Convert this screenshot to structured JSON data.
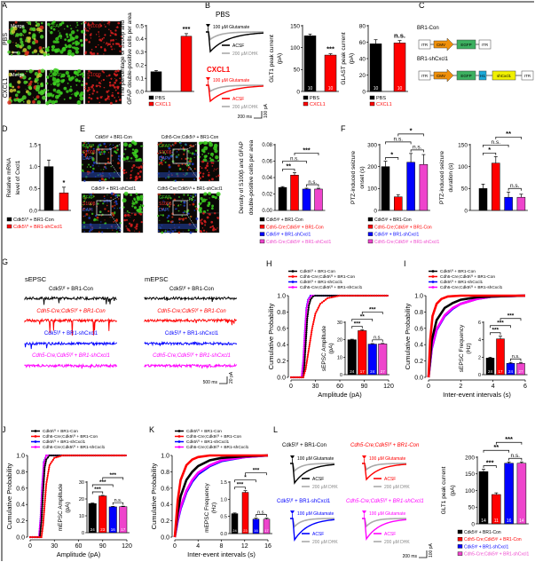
{
  "panel_letters": [
    "A",
    "B",
    "C",
    "D",
    "E",
    "F",
    "G",
    "H",
    "I",
    "J",
    "K",
    "L"
  ],
  "groups": [
    "Cdk5ᶠ/ᶠ + BR1-Con",
    "Cdh5-Cre;Cdk5ᶠ/ᶠ + BR1-Con",
    "Cdk5ᶠ/ᶠ + BR1-shCxcl1",
    "Cdh5-Cre;Cdk5ᶠ/ᶠ + BR1-shCxcl1"
  ],
  "group_colors": [
    "#000000",
    "#ff0000",
    "#0000ff",
    "#ee44cc"
  ],
  "trace_colors": [
    "#000000",
    "#ff0000",
    "#0000ff",
    "#ff00ff"
  ],
  "panel_A": {
    "rows": [
      "PBS",
      "CXCL1"
    ],
    "channels": [
      "Merge",
      "GFAP",
      "S100β"
    ]
  },
  "panel_B": {
    "conditions": [
      "PBS",
      "CXCL1"
    ],
    "stimulus": "100 µM Glutamate",
    "acsf": "ACSF",
    "dhk": "200 µM DHK",
    "scale_time": "200 ms",
    "scale_amp": "100 pA"
  },
  "panel_C": {
    "constructs": [
      {
        "name": "BR1-Con",
        "elements": [
          "ITR",
          "CMV",
          "EGFP",
          "ITR"
        ]
      },
      {
        "name": "BR1-shCxcl1",
        "elements": [
          "ITR",
          "CMV",
          "EGFP",
          "H1",
          "shCxcl1",
          "ITR"
        ]
      }
    ],
    "element_colors": {
      "ITR": "#ffffff",
      "CMV": "#f0900a",
      "EGFP": "#3cb060",
      "H1": "#1aa8d8",
      "shCxcl1": "#f0f000"
    }
  },
  "panel_E": {
    "stains": [
      "GFAP",
      "S100β",
      "DAPI"
    ]
  },
  "panel_G": {
    "titles": [
      "sEPSC",
      "mEPSC"
    ],
    "scale_time": "500 ms",
    "scale_amp": "20 pA"
  },
  "panel_L": {
    "stimulus": "100 µM Glutamate",
    "acsf": "ACSF",
    "dhk": "200 µM DHK",
    "scale_time": "200 ms",
    "scale_amp": "100 pA"
  },
  "chart_data": [
    {
      "id": "A",
      "type": "bar",
      "categories": [
        "PBS",
        "CXCL1"
      ],
      "colors": [
        "#000000",
        "#ff0000"
      ],
      "values": [
        0.15,
        0.42
      ],
      "errors": [
        0.01,
        0.02
      ],
      "ylim": [
        0,
        0.5
      ],
      "yticks": [
        "0.0",
        "0.1",
        "0.2",
        "0.3",
        "0.4",
        "0.5"
      ],
      "ylabel": [
        "The percentage of S100β and",
        "GFAP double-positive cells per area"
      ],
      "significance": [
        {
          "pair": [
            1
          ],
          "label": "***"
        }
      ]
    },
    {
      "id": "B-GLT1",
      "type": "bar",
      "categories": [
        "PBS",
        "CXCL1"
      ],
      "colors": [
        "#000000",
        "#ff0000"
      ],
      "values": [
        127,
        83
      ],
      "errors": [
        4,
        3
      ],
      "n": [
        "10",
        "10"
      ],
      "ylim": [
        0,
        150
      ],
      "yticks": [
        "0",
        "50",
        "100",
        "150"
      ],
      "ylabel": [
        "GLT1 peak current",
        "(pA)"
      ],
      "significance": [
        {
          "pair": [
            1
          ],
          "label": "***"
        }
      ]
    },
    {
      "id": "B-GLAST",
      "type": "bar",
      "categories": [
        "PBS",
        "CXCL1"
      ],
      "colors": [
        "#000000",
        "#ff0000"
      ],
      "values": [
        58,
        59
      ],
      "errors": [
        5,
        3
      ],
      "n": [
        "10",
        "10"
      ],
      "ylim": [
        0,
        80
      ],
      "yticks": [
        "0",
        "20",
        "40",
        "60",
        "80"
      ],
      "ylabel": [
        "GLAST peak current",
        "(pA)"
      ],
      "significance": [
        {
          "pair": [
            1
          ],
          "label": "n.s."
        }
      ]
    },
    {
      "id": "D",
      "type": "bar",
      "categories": [
        "Cdk5ᶠ/ᶠ + BR1-Con",
        "Cdk5ᶠ/ᶠ + BR1-shCxcl1"
      ],
      "colors": [
        "#000000",
        "#ff0000"
      ],
      "values": [
        1.0,
        0.4
      ],
      "errors": [
        0.15,
        0.13
      ],
      "ylim": [
        0,
        1.5
      ],
      "yticks": [
        "0.0",
        "0.5",
        "1.0",
        "1.5"
      ],
      "ylabel": [
        "Relative mRNA",
        "level of Cxcl1"
      ],
      "significance": [
        {
          "pair": [
            1
          ],
          "label": "*"
        }
      ]
    },
    {
      "id": "E",
      "type": "bar",
      "values": [
        0.028,
        0.043,
        0.026,
        0.026
      ],
      "errors": [
        0.001,
        0.003,
        0.001,
        0.001
      ],
      "ylim": [
        0,
        0.08
      ],
      "yticks": [
        "0.00",
        "0.02",
        "0.04",
        "0.06",
        "0.08"
      ],
      "ylabel": [
        "Density of S100β and GFAP",
        "double-positive cells per area"
      ],
      "significance": [
        {
          "pair": [
            0,
            1
          ],
          "label": "**"
        },
        {
          "pair": [
            2,
            3
          ],
          "label": "n.s."
        },
        {
          "pair": [
            0,
            2
          ],
          "label": "n.s."
        },
        {
          "pair": [
            1,
            3
          ],
          "label": "***"
        }
      ]
    },
    {
      "id": "F-onset",
      "type": "bar",
      "values": [
        200,
        62,
        220,
        210
      ],
      "errors": [
        25,
        10,
        40,
        45
      ],
      "ylim": [
        0,
        300
      ],
      "yticks": [
        "0",
        "100",
        "200",
        "300"
      ],
      "ylabel": [
        "PTZ-induced seizure",
        "onset (s)"
      ],
      "significance": [
        {
          "pair": [
            0,
            1
          ],
          "label": "*"
        },
        {
          "pair": [
            2,
            3
          ],
          "label": "n.s."
        },
        {
          "pair": [
            0,
            2
          ],
          "label": "n.s."
        },
        {
          "pair": [
            1,
            3
          ],
          "label": "*"
        }
      ]
    },
    {
      "id": "F-duration",
      "type": "bar",
      "values": [
        50,
        108,
        30,
        30
      ],
      "errors": [
        10,
        15,
        12,
        7
      ],
      "ylim": [
        0,
        150
      ],
      "yticks": [
        "0",
        "50",
        "100",
        "150"
      ],
      "ylabel": [
        "PTZ-induced seizure",
        "duration (s)"
      ],
      "significance": [
        {
          "pair": [
            0,
            1
          ],
          "label": "*"
        },
        {
          "pair": [
            2,
            3
          ],
          "label": "n.s."
        },
        {
          "pair": [
            0,
            2
          ],
          "label": "n.s."
        },
        {
          "pair": [
            1,
            3
          ],
          "label": "**"
        }
      ]
    },
    {
      "id": "H",
      "type": "line",
      "xlabel": "Amplitude (pA)",
      "ylabel": "Cumulative Probability",
      "xlim": [
        0,
        120
      ],
      "ylim": [
        0,
        1
      ],
      "xticks": [
        "0",
        "30",
        "60",
        "90",
        "120"
      ],
      "yticks": [
        "0.0",
        "0.2",
        "0.4",
        "0.6",
        "0.8",
        "1.0"
      ],
      "markers": true,
      "series": [
        {
          "x": [
            0,
            15,
            16.5,
            18,
            20,
            22,
            24,
            27,
            30,
            120
          ],
          "y": [
            0,
            0,
            0.15,
            0.4,
            0.72,
            0.88,
            0.95,
            0.99,
            1,
            1
          ]
        },
        {
          "x": [
            0,
            15,
            18,
            22,
            26,
            30,
            36,
            45,
            60,
            120
          ],
          "y": [
            0,
            0,
            0.1,
            0.35,
            0.6,
            0.78,
            0.9,
            0.97,
            1,
            1
          ]
        },
        {
          "x": [
            0,
            13,
            15,
            17,
            19,
            21,
            24,
            120
          ],
          "y": [
            0,
            0,
            0.2,
            0.55,
            0.85,
            0.95,
            1,
            1
          ]
        },
        {
          "x": [
            0,
            13,
            15,
            17,
            19,
            21.5,
            25,
            120
          ],
          "y": [
            0,
            0,
            0.18,
            0.52,
            0.83,
            0.95,
            1,
            1
          ]
        }
      ]
    },
    {
      "id": "H-inset",
      "type": "bar",
      "values": [
        20,
        25.2,
        17.5,
        17.6
      ],
      "errors": [
        0.3,
        0.5,
        0.3,
        0.3
      ],
      "n": [
        "24",
        "17",
        "24",
        "27"
      ],
      "ylim": [
        0,
        30
      ],
      "yticks": [
        "0",
        "10",
        "20",
        "30"
      ],
      "ylabel": [
        "sEPSC Amplitude",
        "(pA)"
      ],
      "significance": [
        {
          "pair": [
            0,
            1
          ],
          "label": "***"
        },
        {
          "pair": [
            2,
            3
          ],
          "label": "n.s."
        },
        {
          "pair": [
            0,
            2
          ],
          "label": "**"
        },
        {
          "pair": [
            1,
            3
          ],
          "label": "***"
        }
      ]
    },
    {
      "id": "I",
      "type": "line",
      "xlabel": "Inter-event  intervals (s)",
      "ylabel": "Cumulative Probability",
      "xlim": [
        0,
        6
      ],
      "ylim": [
        0,
        1
      ],
      "xticks": [
        "0",
        "2",
        "4",
        "6"
      ],
      "yticks": [
        "0.0",
        "0.2",
        "0.4",
        "0.6",
        "0.8",
        "1.0"
      ],
      "markers": false,
      "series": [
        {
          "x": [
            0,
            0.2,
            0.5,
            1,
            1.5,
            2,
            3,
            4,
            6
          ],
          "y": [
            0,
            0.45,
            0.7,
            0.85,
            0.91,
            0.95,
            0.98,
            0.99,
            1
          ]
        },
        {
          "x": [
            0,
            0.1,
            0.25,
            0.5,
            0.8,
            1.2,
            2,
            6
          ],
          "y": [
            0,
            0.45,
            0.75,
            0.9,
            0.96,
            0.99,
            1,
            1
          ]
        },
        {
          "x": [
            0,
            0.2,
            0.5,
            1,
            1.5,
            2,
            3,
            4,
            6
          ],
          "y": [
            0,
            0.35,
            0.58,
            0.75,
            0.84,
            0.9,
            0.96,
            0.99,
            1
          ]
        },
        {
          "x": [
            0,
            0.2,
            0.5,
            1,
            1.5,
            2,
            3,
            4,
            6
          ],
          "y": [
            0,
            0.36,
            0.59,
            0.76,
            0.85,
            0.9,
            0.96,
            0.99,
            1
          ]
        }
      ]
    },
    {
      "id": "I-inset",
      "type": "bar",
      "values": [
        1.9,
        4.1,
        1.3,
        1.3
      ],
      "errors": [
        0.1,
        0.3,
        0.1,
        0.1
      ],
      "n": [
        "24",
        "17",
        "24",
        "27"
      ],
      "ylim": [
        0,
        6
      ],
      "yticks": [
        "0",
        "2",
        "4",
        "6"
      ],
      "ylabel": [
        "sEPSC Frequency",
        "(Hz)"
      ],
      "significance": [
        {
          "pair": [
            0,
            1
          ],
          "label": "***"
        },
        {
          "pair": [
            2,
            3
          ],
          "label": "n.s."
        },
        {
          "pair": [
            0,
            2
          ],
          "label": "***"
        },
        {
          "pair": [
            1,
            3
          ],
          "label": "***"
        }
      ]
    },
    {
      "id": "J",
      "type": "line",
      "xlabel": "Amplitude (pA)",
      "ylabel": "Cumulative Probability",
      "xlim": [
        0,
        120
      ],
      "ylim": [
        0,
        1
      ],
      "xticks": [
        "0",
        "30",
        "60",
        "90",
        "120"
      ],
      "yticks": [
        "0.0",
        "0.2",
        "0.4",
        "0.6",
        "0.8",
        "1.0"
      ],
      "markers": true,
      "series": [
        {
          "x": [
            0,
            12,
            14,
            16,
            18,
            20,
            24,
            120
          ],
          "y": [
            0,
            0,
            0.2,
            0.55,
            0.85,
            0.95,
            1,
            1
          ]
        },
        {
          "x": [
            0,
            14,
            16,
            18,
            20,
            24,
            30,
            40,
            120
          ],
          "y": [
            0,
            0,
            0.15,
            0.4,
            0.65,
            0.88,
            0.97,
            1,
            1
          ]
        },
        {
          "x": [
            0,
            11,
            13,
            15,
            17,
            20,
            120
          ],
          "y": [
            0,
            0,
            0.25,
            0.65,
            0.92,
            1,
            1
          ]
        },
        {
          "x": [
            0,
            11,
            13,
            15,
            17,
            20,
            120
          ],
          "y": [
            0,
            0,
            0.23,
            0.62,
            0.9,
            1,
            1
          ]
        }
      ]
    },
    {
      "id": "J-inset",
      "type": "bar",
      "values": [
        17.3,
        21.8,
        15.3,
        15.4
      ],
      "errors": [
        0.3,
        0.3,
        0.3,
        0.3
      ],
      "n": [
        "24",
        "23",
        "16",
        "17"
      ],
      "ylim": [
        0,
        30
      ],
      "yticks": [
        "0",
        "10",
        "20",
        "30"
      ],
      "ylabel": [
        "mEPSC Amplitude",
        "(pA)"
      ],
      "significance": [
        {
          "pair": [
            0,
            1
          ],
          "label": "***"
        },
        {
          "pair": [
            2,
            3
          ],
          "label": "n.s."
        },
        {
          "pair": [
            0,
            2
          ],
          "label": "***"
        },
        {
          "pair": [
            1,
            3
          ],
          "label": "***"
        }
      ]
    },
    {
      "id": "K",
      "type": "line",
      "xlabel": "Inter-event  intervals (s)",
      "ylabel": "Cumulative Probability",
      "xlim": [
        0,
        16
      ],
      "ylim": [
        0,
        1
      ],
      "xticks": [
        "0",
        "4",
        "8",
        "12",
        "16"
      ],
      "yticks": [
        "0.0",
        "0.2",
        "0.4",
        "0.6",
        "0.8",
        "1.0"
      ],
      "markers": false,
      "series": [
        {
          "x": [
            0,
            0.5,
            1,
            2,
            3,
            4,
            6,
            8,
            12,
            16
          ],
          "y": [
            0,
            0.3,
            0.5,
            0.7,
            0.8,
            0.87,
            0.94,
            0.97,
            0.99,
            1
          ]
        },
        {
          "x": [
            0,
            0.5,
            1,
            2,
            3,
            4,
            6,
            16
          ],
          "y": [
            0,
            0.45,
            0.7,
            0.88,
            0.95,
            0.98,
            1,
            1
          ]
        },
        {
          "x": [
            0,
            0.5,
            1,
            2,
            3,
            4,
            6,
            8,
            12,
            16
          ],
          "y": [
            0,
            0.2,
            0.35,
            0.55,
            0.68,
            0.77,
            0.87,
            0.93,
            0.98,
            1
          ]
        },
        {
          "x": [
            0,
            0.5,
            1,
            2,
            3,
            4,
            6,
            8,
            12,
            16
          ],
          "y": [
            0,
            0.22,
            0.37,
            0.57,
            0.7,
            0.79,
            0.88,
            0.94,
            0.98,
            1
          ]
        }
      ]
    },
    {
      "id": "K-inset",
      "type": "bar",
      "values": [
        0.58,
        1.2,
        0.42,
        0.42
      ],
      "errors": [
        0.02,
        0.05,
        0.03,
        0.03
      ],
      "n": [
        "24",
        "23",
        "16",
        "17"
      ],
      "ylim": [
        0,
        1.5
      ],
      "yticks": [
        "0.0",
        "0.5",
        "1.0",
        "1.5"
      ],
      "ylabel": [
        "mEPSC Frequency",
        "(Hz)"
      ],
      "significance": [
        {
          "pair": [
            0,
            1
          ],
          "label": "***"
        },
        {
          "pair": [
            2,
            3
          ],
          "label": "n.s."
        },
        {
          "pair": [
            0,
            2
          ],
          "label": "*"
        },
        {
          "pair": [
            1,
            3
          ],
          "label": "***"
        }
      ]
    },
    {
      "id": "L",
      "type": "bar",
      "values": [
        157,
        88,
        182,
        182
      ],
      "errors": [
        7,
        5,
        4,
        4
      ],
      "n": [
        "14",
        "11",
        "16",
        "14"
      ],
      "ylim": [
        0,
        200
      ],
      "yticks": [
        "0",
        "50",
        "100",
        "150",
        "200"
      ],
      "ylabel": [
        "GLT1 peak current",
        "(pA)"
      ],
      "significance": [
        {
          "pair": [
            0,
            1
          ],
          "label": "***"
        },
        {
          "pair": [
            2,
            3
          ],
          "label": "n.s."
        },
        {
          "pair": [
            0,
            2
          ],
          "label": "**"
        },
        {
          "pair": [
            1,
            3
          ],
          "label": "***"
        }
      ]
    }
  ]
}
